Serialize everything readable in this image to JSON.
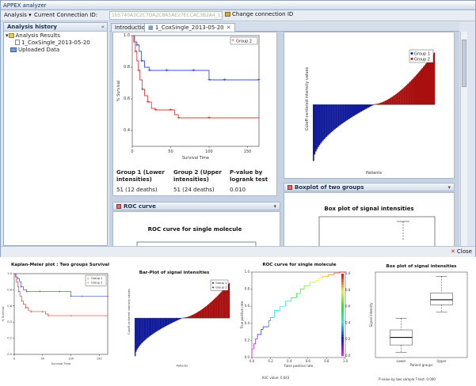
{
  "app": {
    "title": "APPEX analyzer",
    "menu_analysis": "Analysis",
    "connection_label": "Current Connection ID:",
    "connection_id": "1b5740A3C2C7DA2C8A5AE27ECCAC3B2A4_1368406529638",
    "change_connection": "Change connection ID",
    "close": "Close"
  },
  "history": {
    "title": "Analysis history",
    "results_folder": "Analysis Results",
    "result_item": "1_CoxSingle_2013-05-20",
    "uploaded": "Uploaded Data"
  },
  "tabs": [
    {
      "label": "Introduction"
    },
    {
      "label": "1_CoxSingle_2013-05-20"
    }
  ],
  "stats_table": {
    "headers": [
      "Group 1 (Lower intensities)",
      "Group 2 (Upper intensities)",
      "P-value by logrank test"
    ],
    "row": [
      "51 (12 deaths)",
      "51 (24 deaths)",
      "0.010"
    ]
  },
  "sections": {
    "roc": "ROC curve",
    "boxplot": "Boxplot of two groups"
  },
  "colors": {
    "group1": "#3b4fd8",
    "group2": "#e13b3b",
    "bar_blue": "#101a9a",
    "bar_red": "#a80f0f"
  },
  "upper_plots": {
    "km": {
      "legend": [
        "Group 2"
      ],
      "ylabel": "% Survival",
      "xlabel": "Survival Time",
      "xticks": [
        "0",
        "50",
        "100",
        "150"
      ],
      "yticks": [
        "0.4",
        "0.6",
        "0.8",
        "1.0"
      ]
    },
    "bar": {
      "legend": [
        "Group 1",
        "Group 2"
      ],
      "ylabel": "Cutoff-centered intensity values",
      "xlabel": "Patients"
    },
    "roc_title": "ROC curve for single molecule",
    "box_title": "Box plot of signal intensities"
  },
  "lower_plots": {
    "km": {
      "title": "Kaplan-Meier plot : Two groups Survival",
      "legend": [
        "Group 1",
        "Group 2"
      ],
      "xlabel": "Survival Time",
      "ylabel": "% Survival",
      "xticks": [
        "0",
        "50",
        "100",
        "150"
      ],
      "yticks": [
        "0.0",
        "0.2",
        "0.4",
        "0.6",
        "0.8",
        "1.0"
      ]
    },
    "bar": {
      "title": "Bar-Plot of signal intensities",
      "legend": [
        "Group 1",
        "Group 2"
      ],
      "ylabel": "Cutoff-centered intensity values",
      "xlabel": "Patients"
    },
    "roc": {
      "title": "ROC curve for single molecule",
      "xlabel": "False positive rate",
      "ylabel": "True positive rate",
      "xticks": [
        "0.0",
        "0.2",
        "0.4",
        "0.6",
        "0.8",
        "1.0"
      ],
      "yticks": [
        "0.0",
        "0.2",
        "0.4",
        "0.6",
        "0.8",
        "1.0"
      ],
      "cbar": [
        "0.0",
        "0.2",
        "0.4",
        "0.6",
        "0.8",
        "1.0"
      ],
      "auc": "AUC value: 0.643"
    },
    "box": {
      "title": "Box plot of signal intensities",
      "xlabel": "Patient groups",
      "ylabel": "Signal intensity",
      "categories": [
        "Lower",
        "Upper"
      ],
      "pvalue": "P-value by two sample T-test: 0.000"
    }
  },
  "chart_data": [
    {
      "type": "line",
      "title": "Kaplan-Meier plot : Two groups Survival",
      "xlabel": "Survival Time",
      "ylabel": "% Survival",
      "xlim": [
        0,
        165
      ],
      "ylim": [
        0,
        1
      ],
      "series": [
        {
          "name": "Group 1",
          "x": [
            0,
            3,
            6,
            9,
            12,
            16,
            22,
            30,
            45,
            65,
            80,
            95,
            100,
            101,
            120,
            150,
            165
          ],
          "y": [
            1.0,
            0.96,
            0.94,
            0.9,
            0.84,
            0.8,
            0.78,
            0.78,
            0.78,
            0.78,
            0.78,
            0.78,
            0.72,
            0.72,
            0.72,
            0.72,
            0.72
          ]
        },
        {
          "name": "Group 2",
          "x": [
            0,
            2,
            4,
            6,
            8,
            10,
            13,
            16,
            20,
            25,
            30,
            40,
            50,
            55,
            60,
            85,
            100,
            165
          ],
          "y": [
            1.0,
            0.96,
            0.9,
            0.84,
            0.78,
            0.72,
            0.66,
            0.62,
            0.58,
            0.54,
            0.53,
            0.53,
            0.53,
            0.5,
            0.48,
            0.48,
            0.48,
            0.48
          ]
        }
      ]
    },
    {
      "type": "bar",
      "title": "Bar-Plot of signal intensities",
      "xlabel": "Patients",
      "ylabel": "Cutoff-centered intensity values",
      "series": [
        {
          "name": "Group 1",
          "count": 51,
          "min": -2.6,
          "max": -0.02
        },
        {
          "name": "Group 2",
          "count": 51,
          "min": 0.02,
          "max": 2.4
        }
      ]
    },
    {
      "type": "line",
      "title": "ROC curve for single molecule",
      "xlabel": "False positive rate",
      "ylabel": "True positive rate",
      "xlim": [
        0,
        1
      ],
      "ylim": [
        0,
        1
      ],
      "series": [
        {
          "name": "ROC",
          "x": [
            0.0,
            0.02,
            0.04,
            0.06,
            0.1,
            0.12,
            0.18,
            0.2,
            0.24,
            0.3,
            0.36,
            0.42,
            0.48,
            0.52,
            0.56,
            0.62,
            0.68,
            0.72,
            0.76,
            0.82,
            0.88,
            0.94,
            1.0
          ],
          "y": [
            0.0,
            0.1,
            0.16,
            0.22,
            0.27,
            0.33,
            0.36,
            0.43,
            0.47,
            0.55,
            0.6,
            0.66,
            0.7,
            0.75,
            0.8,
            0.84,
            0.88,
            0.9,
            0.93,
            0.95,
            0.97,
            0.99,
            1.0
          ]
        }
      ],
      "auc": 0.643
    },
    {
      "type": "box",
      "title": "Box plot of signal intensities",
      "xlabel": "Patient groups",
      "ylabel": "Signal intensity",
      "categories": [
        "Lower",
        "Upper"
      ],
      "boxes": [
        {
          "min": 3.9,
          "q1": 4.35,
          "median": 4.8,
          "q3": 5.25,
          "max": 5.95
        },
        {
          "min": 6.3,
          "q1": 6.75,
          "median": 7.05,
          "q3": 7.45,
          "max": 8.45
        }
      ],
      "pvalue": 0.0
    }
  ]
}
